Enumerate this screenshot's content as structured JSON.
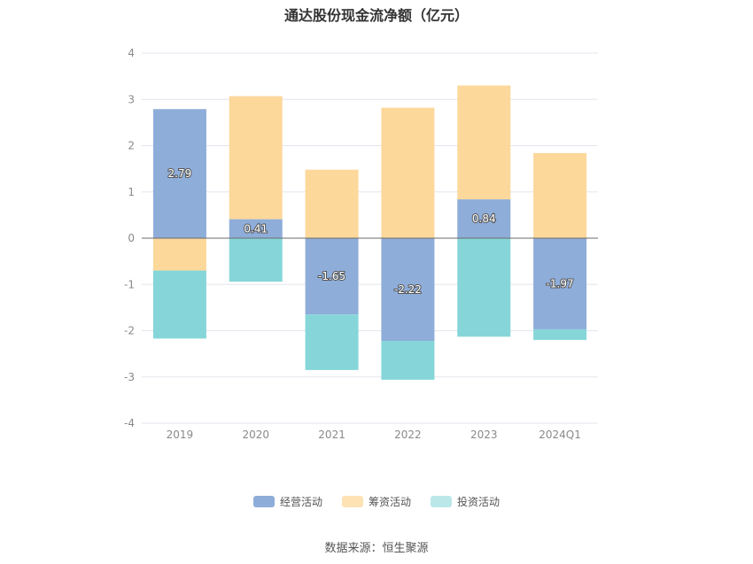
{
  "chart_data": {
    "type": "bar",
    "stacked": true,
    "title": "通达股份现金流净额（亿元）",
    "categories": [
      "2019",
      "2020",
      "2021",
      "2022",
      "2023",
      "2024Q1"
    ],
    "series": [
      {
        "name": "经营活动",
        "color": "#8eadd9",
        "values": [
          2.79,
          0.41,
          -1.65,
          -2.22,
          0.84,
          -1.97
        ]
      },
      {
        "name": "筹资活动",
        "color": "#fdd89b",
        "values": [
          -0.7,
          2.66,
          1.48,
          2.82,
          2.46,
          1.84
        ]
      },
      {
        "name": "投资活动",
        "color": "#86d6d9",
        "values": [
          -1.47,
          -0.94,
          -1.2,
          -0.84,
          -2.13,
          -0.23
        ]
      }
    ],
    "data_labels_series": "经营活动",
    "yticks": [
      "4",
      "3",
      "2",
      "1",
      "0",
      "-1",
      "-2",
      "-3",
      "-4"
    ],
    "ylim": [
      -4,
      4
    ],
    "grid": true,
    "legend_position": "bottom",
    "xlabel": "",
    "ylabel": ""
  },
  "legend_colors": [
    "#8eadd9",
    "#fde2b4",
    "#bce7e8"
  ],
  "source": "数据来源：恒生聚源"
}
